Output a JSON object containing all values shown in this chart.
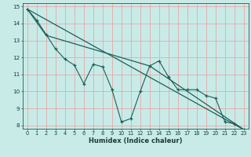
{
  "xlabel": "Humidex (Indice chaleur)",
  "ylabel": "",
  "xlim": [
    -0.5,
    23.5
  ],
  "ylim": [
    7.8,
    15.2
  ],
  "background_color": "#c8ebe8",
  "grid_color": "#e8a8a8",
  "line_color": "#1a6058",
  "line1_x": [
    0,
    1,
    2,
    3,
    4,
    5,
    6,
    7,
    8,
    9,
    10,
    11,
    12,
    13,
    14,
    15,
    16,
    17,
    18,
    19,
    20,
    21,
    22,
    23
  ],
  "line1_y": [
    14.85,
    14.2,
    13.35,
    12.5,
    11.9,
    11.55,
    10.45,
    11.6,
    11.45,
    10.1,
    8.2,
    8.4,
    10.0,
    11.5,
    11.8,
    10.85,
    10.1,
    10.1,
    10.1,
    9.75,
    9.6,
    8.2,
    8.1,
    7.75
  ],
  "line2_x": [
    0,
    23
  ],
  "line2_y": [
    14.85,
    7.75
  ],
  "line3_x": [
    0,
    2,
    13,
    23
  ],
  "line3_y": [
    14.85,
    13.3,
    11.5,
    7.75
  ],
  "xticks": [
    0,
    1,
    2,
    3,
    4,
    5,
    6,
    7,
    8,
    9,
    10,
    11,
    12,
    13,
    14,
    15,
    16,
    17,
    18,
    19,
    20,
    21,
    22,
    23
  ],
  "yticks": [
    8,
    9,
    10,
    11,
    12,
    13,
    14,
    15
  ],
  "xlabel_fontsize": 6.0,
  "tick_fontsize": 4.8
}
